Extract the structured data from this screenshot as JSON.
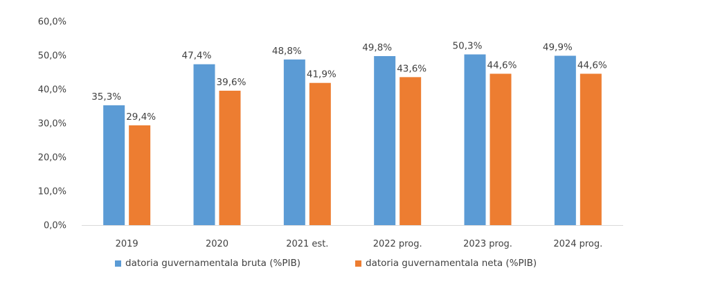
{
  "chart_data": {
    "type": "bar",
    "categories": [
      "2019",
      "2020",
      "2021 est.",
      "2022 prog.",
      "2023 prog.",
      "2024 prog."
    ],
    "series": [
      {
        "name": "datoria guvernamentala bruta (%PIB)",
        "values": [
          35.3,
          47.4,
          48.8,
          49.8,
          50.3,
          49.9
        ],
        "labels": [
          "35,3%",
          "47,4%",
          "48,8%",
          "49,8%",
          "50,3%",
          "49,9%"
        ],
        "color": "#5B9BD5"
      },
      {
        "name": "datoria guvernamentala neta (%PIB)",
        "values": [
          29.4,
          39.6,
          41.9,
          43.6,
          44.6,
          44.6
        ],
        "labels": [
          "29,4%",
          "39,6%",
          "41,9%",
          "43,6%",
          "44,6%",
          "44,6%"
        ],
        "color": "#ED7D31"
      }
    ],
    "ylim": [
      0,
      60
    ],
    "yticks": [
      0,
      10,
      20,
      30,
      40,
      50,
      60
    ],
    "ytick_labels": [
      "0,0%",
      "10,0%",
      "20,0%",
      "30,0%",
      "40,0%",
      "50,0%",
      "60,0%"
    ],
    "grid": false,
    "legend_position": "bottom"
  }
}
